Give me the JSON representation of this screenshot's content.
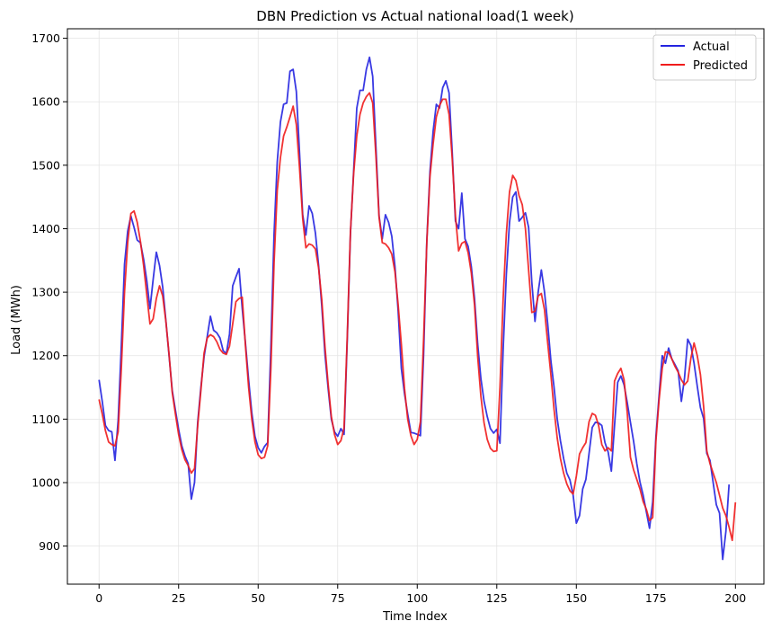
{
  "chart_data": {
    "type": "line",
    "title": "DBN Prediction vs Actual national load(1 week)",
    "xlabel": "Time Index",
    "ylabel": "Load (MWh)",
    "xlim": [
      -9.95,
      208.95
    ],
    "ylim": [
      840,
      1715
    ],
    "xticks": [
      0,
      25,
      50,
      75,
      100,
      125,
      150,
      175,
      200
    ],
    "yticks": [
      900,
      1000,
      1100,
      1200,
      1300,
      1400,
      1500,
      1600,
      1700
    ],
    "grid": true,
    "legend_position": "top-right",
    "series": [
      {
        "name": "Actual",
        "color": "#2424e0",
        "values": [
          1162,
          1128,
          1090,
          1082,
          1080,
          1035,
          1098,
          1216,
          1344,
          1396,
          1420,
          1402,
          1382,
          1378,
          1352,
          1318,
          1274,
          1320,
          1363,
          1342,
          1308,
          1255,
          1200,
          1145,
          1114,
          1084,
          1058,
          1042,
          1030,
          974,
          1000,
          1095,
          1150,
          1198,
          1230,
          1262,
          1240,
          1236,
          1228,
          1208,
          1203,
          1234,
          1310,
          1324,
          1337,
          1274,
          1220,
          1162,
          1110,
          1073,
          1055,
          1047,
          1057,
          1063,
          1214,
          1392,
          1505,
          1568,
          1596,
          1598,
          1648,
          1651,
          1616,
          1520,
          1422,
          1390,
          1436,
          1424,
          1393,
          1342,
          1278,
          1202,
          1148,
          1100,
          1080,
          1073,
          1085,
          1076,
          1224,
          1392,
          1490,
          1590,
          1618,
          1618,
          1651,
          1670,
          1640,
          1530,
          1420,
          1384,
          1422,
          1410,
          1388,
          1340,
          1270,
          1180,
          1140,
          1108,
          1079,
          1078,
          1076,
          1074,
          1202,
          1380,
          1490,
          1554,
          1596,
          1590,
          1622,
          1633,
          1614,
          1520,
          1412,
          1400,
          1456,
          1384,
          1372,
          1340,
          1290,
          1218,
          1164,
          1128,
          1104,
          1085,
          1078,
          1084,
          1062,
          1210,
          1328,
          1410,
          1450,
          1458,
          1412,
          1418,
          1425,
          1402,
          1316,
          1254,
          1300,
          1335,
          1300,
          1250,
          1192,
          1150,
          1100,
          1066,
          1038,
          1015,
          1004,
          980,
          936,
          948,
          990,
          1005,
          1046,
          1087,
          1095,
          1094,
          1090,
          1063,
          1048,
          1018,
          1090,
          1158,
          1168,
          1154,
          1126,
          1095,
          1065,
          1030,
          1001,
          980,
          954,
          928,
          970,
          1072,
          1137,
          1200,
          1188,
          1212,
          1195,
          1186,
          1176,
          1128,
          1165,
          1226,
          1216,
          1188,
          1152,
          1118,
          1101,
          1046,
          1035,
          1000,
          965,
          952,
          879,
          923,
          997
        ]
      },
      {
        "name": "Predicted",
        "color": "#f01c1c",
        "values": [
          1131,
          1108,
          1082,
          1064,
          1060,
          1058,
          1080,
          1180,
          1300,
          1378,
          1424,
          1428,
          1410,
          1380,
          1342,
          1296,
          1250,
          1258,
          1290,
          1310,
          1294,
          1254,
          1202,
          1142,
          1108,
          1076,
          1052,
          1036,
          1027,
          1015,
          1022,
          1090,
          1145,
          1204,
          1228,
          1233,
          1230,
          1222,
          1210,
          1204,
          1202,
          1215,
          1250,
          1285,
          1290,
          1292,
          1216,
          1150,
          1100,
          1064,
          1044,
          1038,
          1040,
          1058,
          1180,
          1346,
          1460,
          1512,
          1546,
          1560,
          1576,
          1593,
          1564,
          1496,
          1416,
          1370,
          1376,
          1374,
          1368,
          1338,
          1288,
          1214,
          1155,
          1104,
          1076,
          1060,
          1066,
          1086,
          1230,
          1394,
          1486,
          1546,
          1580,
          1598,
          1608,
          1614,
          1598,
          1516,
          1418,
          1378,
          1376,
          1370,
          1360,
          1332,
          1280,
          1218,
          1148,
          1100,
          1074,
          1060,
          1068,
          1096,
          1226,
          1378,
          1482,
          1534,
          1576,
          1594,
          1604,
          1604,
          1580,
          1510,
          1420,
          1365,
          1377,
          1380,
          1362,
          1330,
          1280,
          1198,
          1136,
          1094,
          1068,
          1054,
          1049,
          1050,
          1150,
          1290,
          1392,
          1458,
          1484,
          1476,
          1452,
          1438,
          1400,
          1335,
          1268,
          1270,
          1294,
          1298,
          1272,
          1220,
          1170,
          1115,
          1070,
          1038,
          1015,
          998,
          987,
          982,
          1010,
          1045,
          1055,
          1063,
          1096,
          1109,
          1106,
          1090,
          1060,
          1050,
          1055,
          1050,
          1160,
          1172,
          1180,
          1162,
          1110,
          1040,
          1020,
          1005,
          990,
          970,
          958,
          940,
          945,
          1065,
          1130,
          1180,
          1206,
          1205,
          1195,
          1183,
          1174,
          1162,
          1154,
          1160,
          1196,
          1220,
          1200,
          1170,
          1120,
          1050,
          1030,
          1015,
          1000,
          980,
          960,
          948,
          930,
          909,
          969
        ]
      }
    ]
  }
}
